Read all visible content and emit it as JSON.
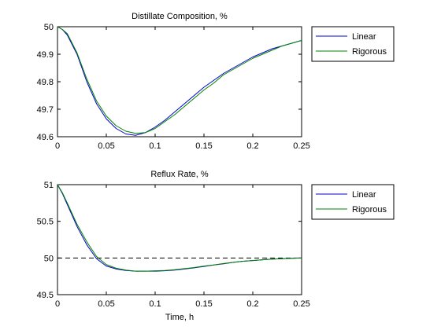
{
  "chart_data": [
    {
      "type": "line",
      "title": "Distillate Composition, %",
      "xlabel": "",
      "ylabel": "",
      "xlim": [
        0,
        0.25
      ],
      "ylim": [
        49.6,
        50.0
      ],
      "xticks": [
        0,
        0.05,
        0.1,
        0.15,
        0.2,
        0.25
      ],
      "yticks": [
        49.6,
        49.7,
        49.8,
        49.9,
        50
      ],
      "xtick_labels": [
        "0",
        "0.05",
        "0.1",
        "0.15",
        "0.2",
        "0.25"
      ],
      "ytick_labels": [
        "49.6",
        "49.7",
        "49.8",
        "49.9",
        "50"
      ],
      "grid": false,
      "legend_position": "outside-right-top",
      "series": [
        {
          "name": "Linear",
          "color": "#0000cc",
          "x": [
            0,
            0.005,
            0.01,
            0.02,
            0.03,
            0.04,
            0.05,
            0.06,
            0.07,
            0.08,
            0.09,
            0.1,
            0.11,
            0.12,
            0.13,
            0.14,
            0.15,
            0.16,
            0.17,
            0.18,
            0.19,
            0.2,
            0.21,
            0.22,
            0.23,
            0.24,
            0.25
          ],
          "y": [
            50.0,
            49.99,
            49.97,
            49.9,
            49.8,
            49.72,
            49.665,
            49.63,
            49.61,
            49.605,
            49.615,
            49.635,
            49.66,
            49.69,
            49.72,
            49.75,
            49.78,
            49.805,
            49.83,
            49.85,
            49.87,
            49.89,
            49.905,
            49.92,
            49.93,
            49.94,
            49.95
          ]
        },
        {
          "name": "Rigorous",
          "color": "#008000",
          "x": [
            0,
            0.005,
            0.01,
            0.02,
            0.03,
            0.04,
            0.05,
            0.06,
            0.07,
            0.08,
            0.09,
            0.1,
            0.11,
            0.12,
            0.13,
            0.14,
            0.15,
            0.16,
            0.17,
            0.18,
            0.19,
            0.2,
            0.21,
            0.22,
            0.23,
            0.24,
            0.25
          ],
          "y": [
            50.0,
            49.99,
            49.975,
            49.905,
            49.81,
            49.73,
            49.675,
            49.64,
            49.62,
            49.612,
            49.615,
            49.63,
            49.655,
            49.68,
            49.71,
            49.74,
            49.77,
            49.795,
            49.825,
            49.845,
            49.865,
            49.885,
            49.9,
            49.915,
            49.93,
            49.94,
            49.95
          ]
        }
      ]
    },
    {
      "type": "line",
      "title": "Reflux Rate, %",
      "xlabel": "Time, h",
      "ylabel": "",
      "xlim": [
        0,
        0.25
      ],
      "ylim": [
        49.5,
        51.0
      ],
      "xticks": [
        0,
        0.05,
        0.1,
        0.15,
        0.2,
        0.25
      ],
      "yticks": [
        49.5,
        50,
        50.5,
        51
      ],
      "xtick_labels": [
        "0",
        "0.05",
        "0.1",
        "0.15",
        "0.2",
        "0.25"
      ],
      "ytick_labels": [
        "49.5",
        "50",
        "50.5",
        "51"
      ],
      "grid": false,
      "legend_position": "outside-right-top",
      "reference_line": {
        "y": 50,
        "style": "dashed",
        "color": "#000000"
      },
      "series": [
        {
          "name": "Linear",
          "color": "#0000cc",
          "x": [
            0,
            0.005,
            0.01,
            0.02,
            0.03,
            0.04,
            0.05,
            0.06,
            0.07,
            0.08,
            0.09,
            0.1,
            0.11,
            0.12,
            0.13,
            0.14,
            0.15,
            0.16,
            0.17,
            0.18,
            0.19,
            0.2,
            0.21,
            0.22,
            0.23,
            0.24,
            0.25
          ],
          "y": [
            51.0,
            50.88,
            50.73,
            50.43,
            50.18,
            49.99,
            49.89,
            49.85,
            49.83,
            49.82,
            49.82,
            49.82,
            49.825,
            49.835,
            49.85,
            49.865,
            49.885,
            49.905,
            49.92,
            49.94,
            49.955,
            49.965,
            49.975,
            49.985,
            49.99,
            49.995,
            50.0
          ]
        },
        {
          "name": "Rigorous",
          "color": "#008000",
          "x": [
            0,
            0.005,
            0.01,
            0.02,
            0.03,
            0.04,
            0.05,
            0.06,
            0.07,
            0.08,
            0.09,
            0.1,
            0.11,
            0.12,
            0.13,
            0.14,
            0.15,
            0.16,
            0.17,
            0.18,
            0.19,
            0.2,
            0.21,
            0.22,
            0.23,
            0.24,
            0.25
          ],
          "y": [
            51.0,
            50.89,
            50.75,
            50.46,
            50.22,
            50.02,
            49.91,
            49.86,
            49.835,
            49.82,
            49.82,
            49.825,
            49.83,
            49.84,
            49.855,
            49.87,
            49.89,
            49.905,
            49.925,
            49.94,
            49.955,
            49.965,
            49.975,
            49.985,
            49.99,
            49.995,
            50.0
          ]
        }
      ]
    }
  ]
}
